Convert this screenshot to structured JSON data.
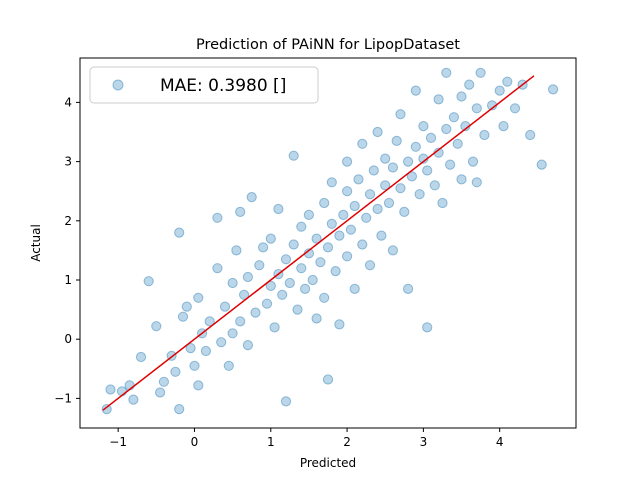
{
  "chart_data": {
    "type": "scatter",
    "title": "Prediction of PAiNN for LipopDataset",
    "xlabel": "Predicted",
    "ylabel": "Actual",
    "xlim": [
      -1.5,
      5.0
    ],
    "ylim": [
      -1.5,
      4.75
    ],
    "xticks": [
      -1,
      0,
      1,
      2,
      3,
      4
    ],
    "xtick_labels": [
      "−1",
      "0",
      "1",
      "2",
      "3",
      "4"
    ],
    "yticks": [
      -1,
      0,
      1,
      2,
      3,
      4
    ],
    "ytick_labels": [
      "−1",
      "0",
      "1",
      "2",
      "3",
      "4"
    ],
    "grid": false,
    "legend": {
      "position": "top-left",
      "entries": [
        "MAE: 0.3980 []"
      ]
    },
    "point_color": "#1f77b4",
    "point_alpha": 0.3,
    "line_color": "#e00000",
    "series": [
      {
        "name": "MAE: 0.3980 []",
        "type": "scatter",
        "points": [
          [
            -1.1,
            -0.85
          ],
          [
            -1.15,
            -1.18
          ],
          [
            -0.95,
            -0.88
          ],
          [
            -0.85,
            -0.78
          ],
          [
            -0.8,
            -1.02
          ],
          [
            -0.7,
            -0.3
          ],
          [
            -0.6,
            0.98
          ],
          [
            -0.5,
            0.22
          ],
          [
            -0.45,
            -0.9
          ],
          [
            -0.4,
            -0.72
          ],
          [
            -0.3,
            -0.28
          ],
          [
            -0.25,
            -0.55
          ],
          [
            -0.2,
            -1.18
          ],
          [
            -0.2,
            1.8
          ],
          [
            -0.15,
            0.38
          ],
          [
            -0.1,
            0.55
          ],
          [
            -0.05,
            -0.15
          ],
          [
            0.0,
            -0.45
          ],
          [
            0.05,
            -0.78
          ],
          [
            0.05,
            0.7
          ],
          [
            0.1,
            0.1
          ],
          [
            0.15,
            -0.2
          ],
          [
            0.2,
            0.3
          ],
          [
            0.3,
            1.2
          ],
          [
            0.3,
            2.05
          ],
          [
            0.35,
            -0.05
          ],
          [
            0.4,
            0.55
          ],
          [
            0.45,
            -0.45
          ],
          [
            0.5,
            0.1
          ],
          [
            0.5,
            0.95
          ],
          [
            0.55,
            1.5
          ],
          [
            0.6,
            0.3
          ],
          [
            0.6,
            2.15
          ],
          [
            0.65,
            0.75
          ],
          [
            0.7,
            -0.1
          ],
          [
            0.7,
            1.05
          ],
          [
            0.75,
            2.4
          ],
          [
            0.8,
            0.45
          ],
          [
            0.85,
            1.25
          ],
          [
            0.9,
            1.55
          ],
          [
            0.95,
            0.6
          ],
          [
            1.0,
            0.9
          ],
          [
            1.0,
            1.7
          ],
          [
            1.05,
            0.2
          ],
          [
            1.1,
            1.1
          ],
          [
            1.1,
            2.2
          ],
          [
            1.15,
            0.75
          ],
          [
            1.2,
            1.35
          ],
          [
            1.2,
            -1.05
          ],
          [
            1.25,
            0.95
          ],
          [
            1.3,
            1.6
          ],
          [
            1.3,
            3.1
          ],
          [
            1.35,
            0.5
          ],
          [
            1.4,
            1.2
          ],
          [
            1.4,
            1.9
          ],
          [
            1.45,
            0.85
          ],
          [
            1.5,
            1.45
          ],
          [
            1.5,
            2.1
          ],
          [
            1.55,
            1.0
          ],
          [
            1.6,
            1.7
          ],
          [
            1.6,
            0.35
          ],
          [
            1.65,
            1.3
          ],
          [
            1.7,
            2.3
          ],
          [
            1.7,
            0.7
          ],
          [
            1.75,
            1.55
          ],
          [
            1.75,
            -0.68
          ],
          [
            1.8,
            1.95
          ],
          [
            1.8,
            2.65
          ],
          [
            1.85,
            1.15
          ],
          [
            1.9,
            1.75
          ],
          [
            1.9,
            0.25
          ],
          [
            1.95,
            2.1
          ],
          [
            2.0,
            1.4
          ],
          [
            2.0,
            2.5
          ],
          [
            2.0,
            3.0
          ],
          [
            2.05,
            1.85
          ],
          [
            2.1,
            2.25
          ],
          [
            2.1,
            0.85
          ],
          [
            2.15,
            2.7
          ],
          [
            2.2,
            1.6
          ],
          [
            2.2,
            3.3
          ],
          [
            2.25,
            2.05
          ],
          [
            2.3,
            2.45
          ],
          [
            2.3,
            1.25
          ],
          [
            2.35,
            2.85
          ],
          [
            2.4,
            2.2
          ],
          [
            2.4,
            3.5
          ],
          [
            2.45,
            1.75
          ],
          [
            2.5,
            2.6
          ],
          [
            2.5,
            3.05
          ],
          [
            2.55,
            2.3
          ],
          [
            2.6,
            2.9
          ],
          [
            2.6,
            1.5
          ],
          [
            2.65,
            3.35
          ],
          [
            2.7,
            2.55
          ],
          [
            2.7,
            3.8
          ],
          [
            2.75,
            2.15
          ],
          [
            2.8,
            3.0
          ],
          [
            2.8,
            0.85
          ],
          [
            2.85,
            2.75
          ],
          [
            2.9,
            3.25
          ],
          [
            2.9,
            4.2
          ],
          [
            2.95,
            2.45
          ],
          [
            3.0,
            3.05
          ],
          [
            3.0,
            3.6
          ],
          [
            3.05,
            0.2
          ],
          [
            3.05,
            2.85
          ],
          [
            3.1,
            3.4
          ],
          [
            3.15,
            2.6
          ],
          [
            3.2,
            3.15
          ],
          [
            3.2,
            4.05
          ],
          [
            3.25,
            2.3
          ],
          [
            3.3,
            3.55
          ],
          [
            3.3,
            4.5
          ],
          [
            3.35,
            2.95
          ],
          [
            3.4,
            3.75
          ],
          [
            3.45,
            3.3
          ],
          [
            3.5,
            4.1
          ],
          [
            3.5,
            2.7
          ],
          [
            3.55,
            3.6
          ],
          [
            3.6,
            4.3
          ],
          [
            3.65,
            3.0
          ],
          [
            3.7,
            3.9
          ],
          [
            3.7,
            2.65
          ],
          [
            3.75,
            4.5
          ],
          [
            3.8,
            3.45
          ],
          [
            3.9,
            3.95
          ],
          [
            4.0,
            4.2
          ],
          [
            4.05,
            3.6
          ],
          [
            4.1,
            4.35
          ],
          [
            4.2,
            3.9
          ],
          [
            4.3,
            4.3
          ],
          [
            4.4,
            3.45
          ],
          [
            4.55,
            2.95
          ],
          [
            4.7,
            4.22
          ]
        ]
      },
      {
        "name": "",
        "type": "line",
        "points": [
          [
            -1.2,
            -1.2
          ],
          [
            4.45,
            4.45
          ]
        ]
      }
    ]
  }
}
